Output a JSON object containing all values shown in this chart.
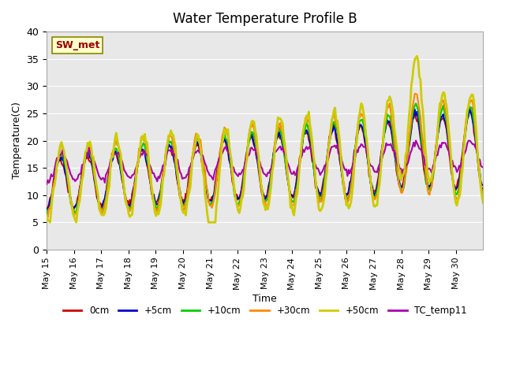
{
  "title": "Water Temperature Profile B",
  "xlabel": "Time",
  "ylabel": "Temperature(C)",
  "annotation": "SW_met",
  "ylim": [
    0,
    40
  ],
  "yticks": [
    0,
    5,
    10,
    15,
    20,
    25,
    30,
    35,
    40
  ],
  "bg_color": "#e8e8e8",
  "series": {
    "0cm": {
      "color": "#cc0000",
      "lw": 1.5
    },
    "+5cm": {
      "color": "#0000cc",
      "lw": 1.5
    },
    "+10cm": {
      "color": "#00cc00",
      "lw": 1.5
    },
    "+30cm": {
      "color": "#ff8800",
      "lw": 1.5
    },
    "+50cm": {
      "color": "#cccc00",
      "lw": 2.0
    },
    "TC_temp11": {
      "color": "#aa00aa",
      "lw": 1.5
    }
  },
  "xtick_dates": [
    "May 15",
    "May 16",
    "May 17",
    "May 18",
    "May 19",
    "May 20",
    "May 21",
    "May 22",
    "May 23",
    "May 24",
    "May 25",
    "May 26",
    "May 27",
    "May 28",
    "May 29",
    "May 30"
  ]
}
